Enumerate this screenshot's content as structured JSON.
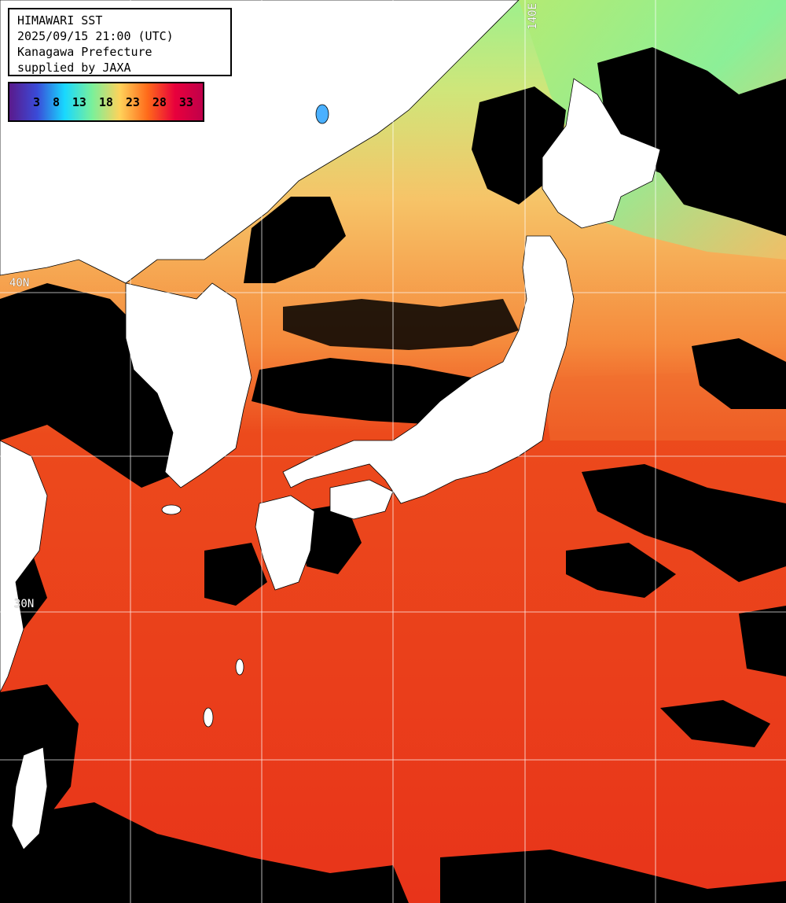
{
  "title_lines": [
    "HIMAWARI SST",
    "2025/09/15 21:00 (UTC)",
    "Kanagawa Prefecture",
    "supplied by JAXA"
  ],
  "legend": {
    "values": [
      "3",
      "8",
      "13",
      "18",
      "23",
      "28",
      "33"
    ],
    "colors": [
      "#5a1a8c",
      "#3a4bd8",
      "#18d8ff",
      "#7af09a",
      "#ffd25a",
      "#ff6a1a",
      "#e8003c",
      "#c0004a"
    ]
  },
  "grid_labels": {
    "lat_40": "40N",
    "lat_30": "30N",
    "lon_140": "140E"
  },
  "colors": {
    "land": "#ffffff",
    "cloud": "#000000",
    "gridline": "#ffffff",
    "sst_warm": "#e8361a",
    "sst_mid": "#f5a24a",
    "sst_cool": "#c8e670",
    "sst_cold": "#7cf0a0"
  }
}
